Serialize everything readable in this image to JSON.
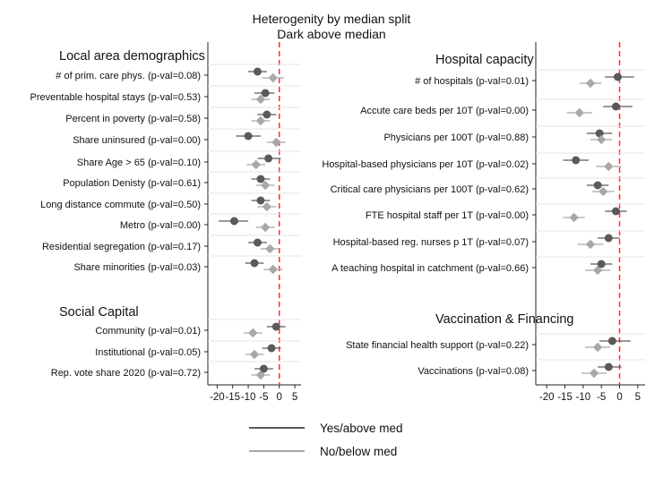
{
  "title": {
    "line1": "Heterogenity by median split",
    "line2": "Dark above median"
  },
  "legend": {
    "above": "Yes/above med",
    "below": "No/below med"
  },
  "colors": {
    "above": "#5a5a5a",
    "below": "#a8a8a8",
    "reference_line": "#e8383d",
    "grid": "#e6e6e6"
  },
  "chart_data": [
    {
      "type": "scatter",
      "subtype": "coefficient-plot",
      "xlim": [
        -23,
        7
      ],
      "xticks": [
        -20,
        -15,
        -10,
        -5,
        0,
        5
      ],
      "reference_x": 0,
      "sections": [
        {
          "title": "Local area demographics",
          "rows": [
            {
              "label": "# of prim. care phys. (p-val=0.08)",
              "above": {
                "est": -7,
                "lo": -10,
                "hi": -4
              },
              "below": {
                "est": -2,
                "lo": -5.5,
                "hi": 1.5
              }
            },
            {
              "label": "Preventable hospital stays (p-val=0.53)",
              "above": {
                "est": -4.5,
                "lo": -8,
                "hi": -1.5
              },
              "below": {
                "est": -6,
                "lo": -9,
                "hi": -3
              }
            },
            {
              "label": "Percent in poverty (p-val=0.58)",
              "above": {
                "est": -4,
                "lo": -7,
                "hi": -1
              },
              "below": {
                "est": -6,
                "lo": -9,
                "hi": -3
              }
            },
            {
              "label": "Share uninsured (p-val=0.00)",
              "above": {
                "est": -10,
                "lo": -14,
                "hi": -6
              },
              "below": {
                "est": -1,
                "lo": -4,
                "hi": 2
              }
            },
            {
              "label": "Share Age > 65 (p-val=0.10)",
              "above": {
                "est": -3.5,
                "lo": -7,
                "hi": 0.5
              },
              "below": {
                "est": -7.5,
                "lo": -10.5,
                "hi": -4.5
              }
            },
            {
              "label": "Population Denisty (p-val=0.61)",
              "above": {
                "est": -6,
                "lo": -9,
                "hi": -3
              },
              "below": {
                "est": -4.5,
                "lo": -7.5,
                "hi": -1.5
              }
            },
            {
              "label": "Long distance commute (p-val=0.50)",
              "above": {
                "est": -6,
                "lo": -9,
                "hi": -3
              },
              "below": {
                "est": -4,
                "lo": -7,
                "hi": -1
              }
            },
            {
              "label": "Metro (p-val=0.00)",
              "above": {
                "est": -14.5,
                "lo": -19.5,
                "hi": -10
              },
              "below": {
                "est": -4.5,
                "lo": -7.5,
                "hi": -1.5
              }
            },
            {
              "label": "Residential segregation (p-val=0.17)",
              "above": {
                "est": -7,
                "lo": -10,
                "hi": -4
              },
              "below": {
                "est": -3,
                "lo": -6,
                "hi": 0
              }
            },
            {
              "label": "Share minorities (p-val=0.03)",
              "above": {
                "est": -8,
                "lo": -11,
                "hi": -5
              },
              "below": {
                "est": -2,
                "lo": -5,
                "hi": 1
              }
            }
          ]
        },
        {
          "title": "Social Capital",
          "rows": [
            {
              "label": "Community (p-val=0.01)",
              "above": {
                "est": -1,
                "lo": -4,
                "hi": 2
              },
              "below": {
                "est": -8.5,
                "lo": -11.5,
                "hi": -5.5
              }
            },
            {
              "label": "Institutional (p-val=0.05)",
              "above": {
                "est": -2.5,
                "lo": -5.5,
                "hi": 0.5
              },
              "below": {
                "est": -8,
                "lo": -11,
                "hi": -5
              }
            },
            {
              "label": "Rep. vote share 2020 (p-val=0.72)",
              "above": {
                "est": -5,
                "lo": -8,
                "hi": -2
              },
              "below": {
                "est": -6,
                "lo": -9,
                "hi": -3
              }
            }
          ]
        }
      ]
    },
    {
      "type": "scatter",
      "subtype": "coefficient-plot",
      "xlim": [
        -23,
        7
      ],
      "xticks": [
        -20,
        -15,
        -10,
        -5,
        0,
        5
      ],
      "reference_x": 0,
      "sections": [
        {
          "title": "Hospital capacity",
          "rows": [
            {
              "label": "# of hospitals (p-val=0.01)",
              "above": {
                "est": -0.5,
                "lo": -4,
                "hi": 4
              },
              "below": {
                "est": -8,
                "lo": -11,
                "hi": -5
              }
            },
            {
              "label": "Accute care beds per 10T (p-val=0.00)",
              "above": {
                "est": -1,
                "lo": -4.5,
                "hi": 3.5
              },
              "below": {
                "est": -11,
                "lo": -14.5,
                "hi": -7.5
              }
            },
            {
              "label": "Physicians per 100T (p-val=0.88)",
              "above": {
                "est": -5.5,
                "lo": -9,
                "hi": -2
              },
              "below": {
                "est": -5,
                "lo": -8,
                "hi": -2
              }
            },
            {
              "label": "Hospital-based physicians per 10T (p-val=0.02)",
              "above": {
                "est": -12,
                "lo": -15.5,
                "hi": -8.5
              },
              "below": {
                "est": -3,
                "lo": -6.5,
                "hi": 0.5
              }
            },
            {
              "label": "Critical care physicians per 100T (p-val=0.62)",
              "above": {
                "est": -6,
                "lo": -9,
                "hi": -3
              },
              "below": {
                "est": -4.5,
                "lo": -7.5,
                "hi": -1.5
              }
            },
            {
              "label": "FTE hospital staff per 1T (p-val=0.00)",
              "above": {
                "est": -1,
                "lo": -4,
                "hi": 2
              },
              "below": {
                "est": -12.5,
                "lo": -15.5,
                "hi": -9.5
              }
            },
            {
              "label": "Hospital-based reg. nurses p 1T (p-val=0.07)",
              "above": {
                "est": -3,
                "lo": -6,
                "hi": 0
              },
              "below": {
                "est": -8,
                "lo": -11.5,
                "hi": -4.5
              }
            },
            {
              "label": "A teaching hospital in catchment (p-val=0.66)",
              "above": {
                "est": -5,
                "lo": -8,
                "hi": -2
              },
              "below": {
                "est": -6,
                "lo": -9.5,
                "hi": -2.5
              }
            }
          ]
        },
        {
          "title": "Vaccination & Financing",
          "rows": [
            {
              "label": "State financial health support (p-val=0.22)",
              "above": {
                "est": -2,
                "lo": -5.5,
                "hi": 3
              },
              "below": {
                "est": -6,
                "lo": -9.5,
                "hi": -2.5
              }
            },
            {
              "label": "Vaccinations (p-val=0.08)",
              "above": {
                "est": -3,
                "lo": -6,
                "hi": 0.5
              },
              "below": {
                "est": -7,
                "lo": -10.5,
                "hi": -3.5
              }
            }
          ]
        }
      ]
    }
  ]
}
